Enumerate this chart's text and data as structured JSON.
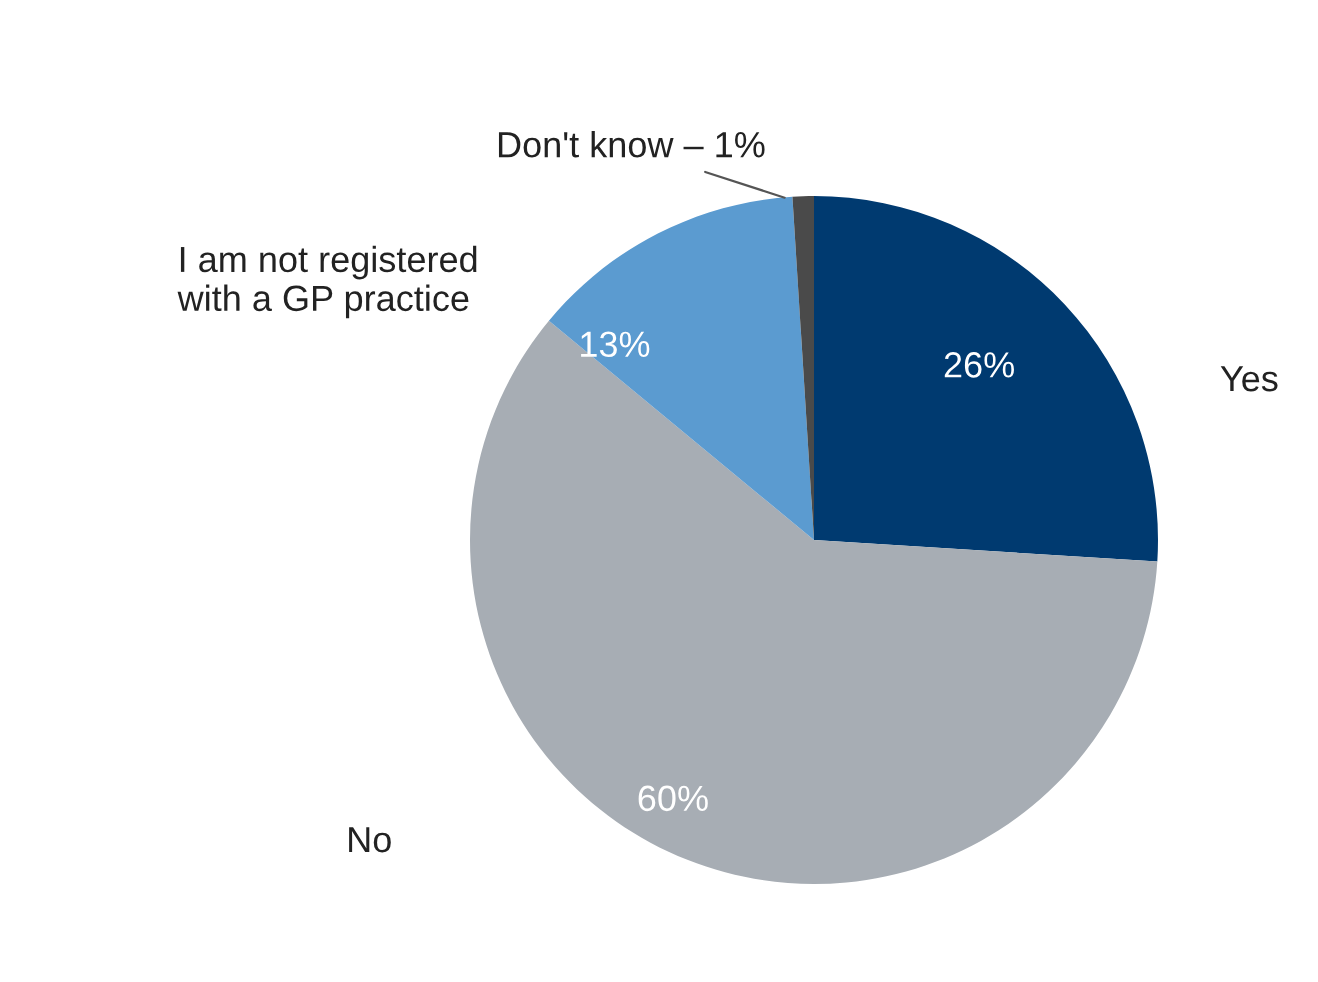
{
  "chart_data": {
    "type": "pie",
    "categories": [
      "Yes",
      "No",
      "I am not registered\nwith a GP practice",
      "Don't know – 1%"
    ],
    "values": [
      26,
      60,
      13,
      1
    ],
    "colors": [
      "#003a70",
      "#a7adb4",
      "#5b9bd0",
      "#4a4a4a"
    ],
    "value_labels": [
      "26%",
      "60%",
      "13%",
      null
    ],
    "legend": false
  }
}
